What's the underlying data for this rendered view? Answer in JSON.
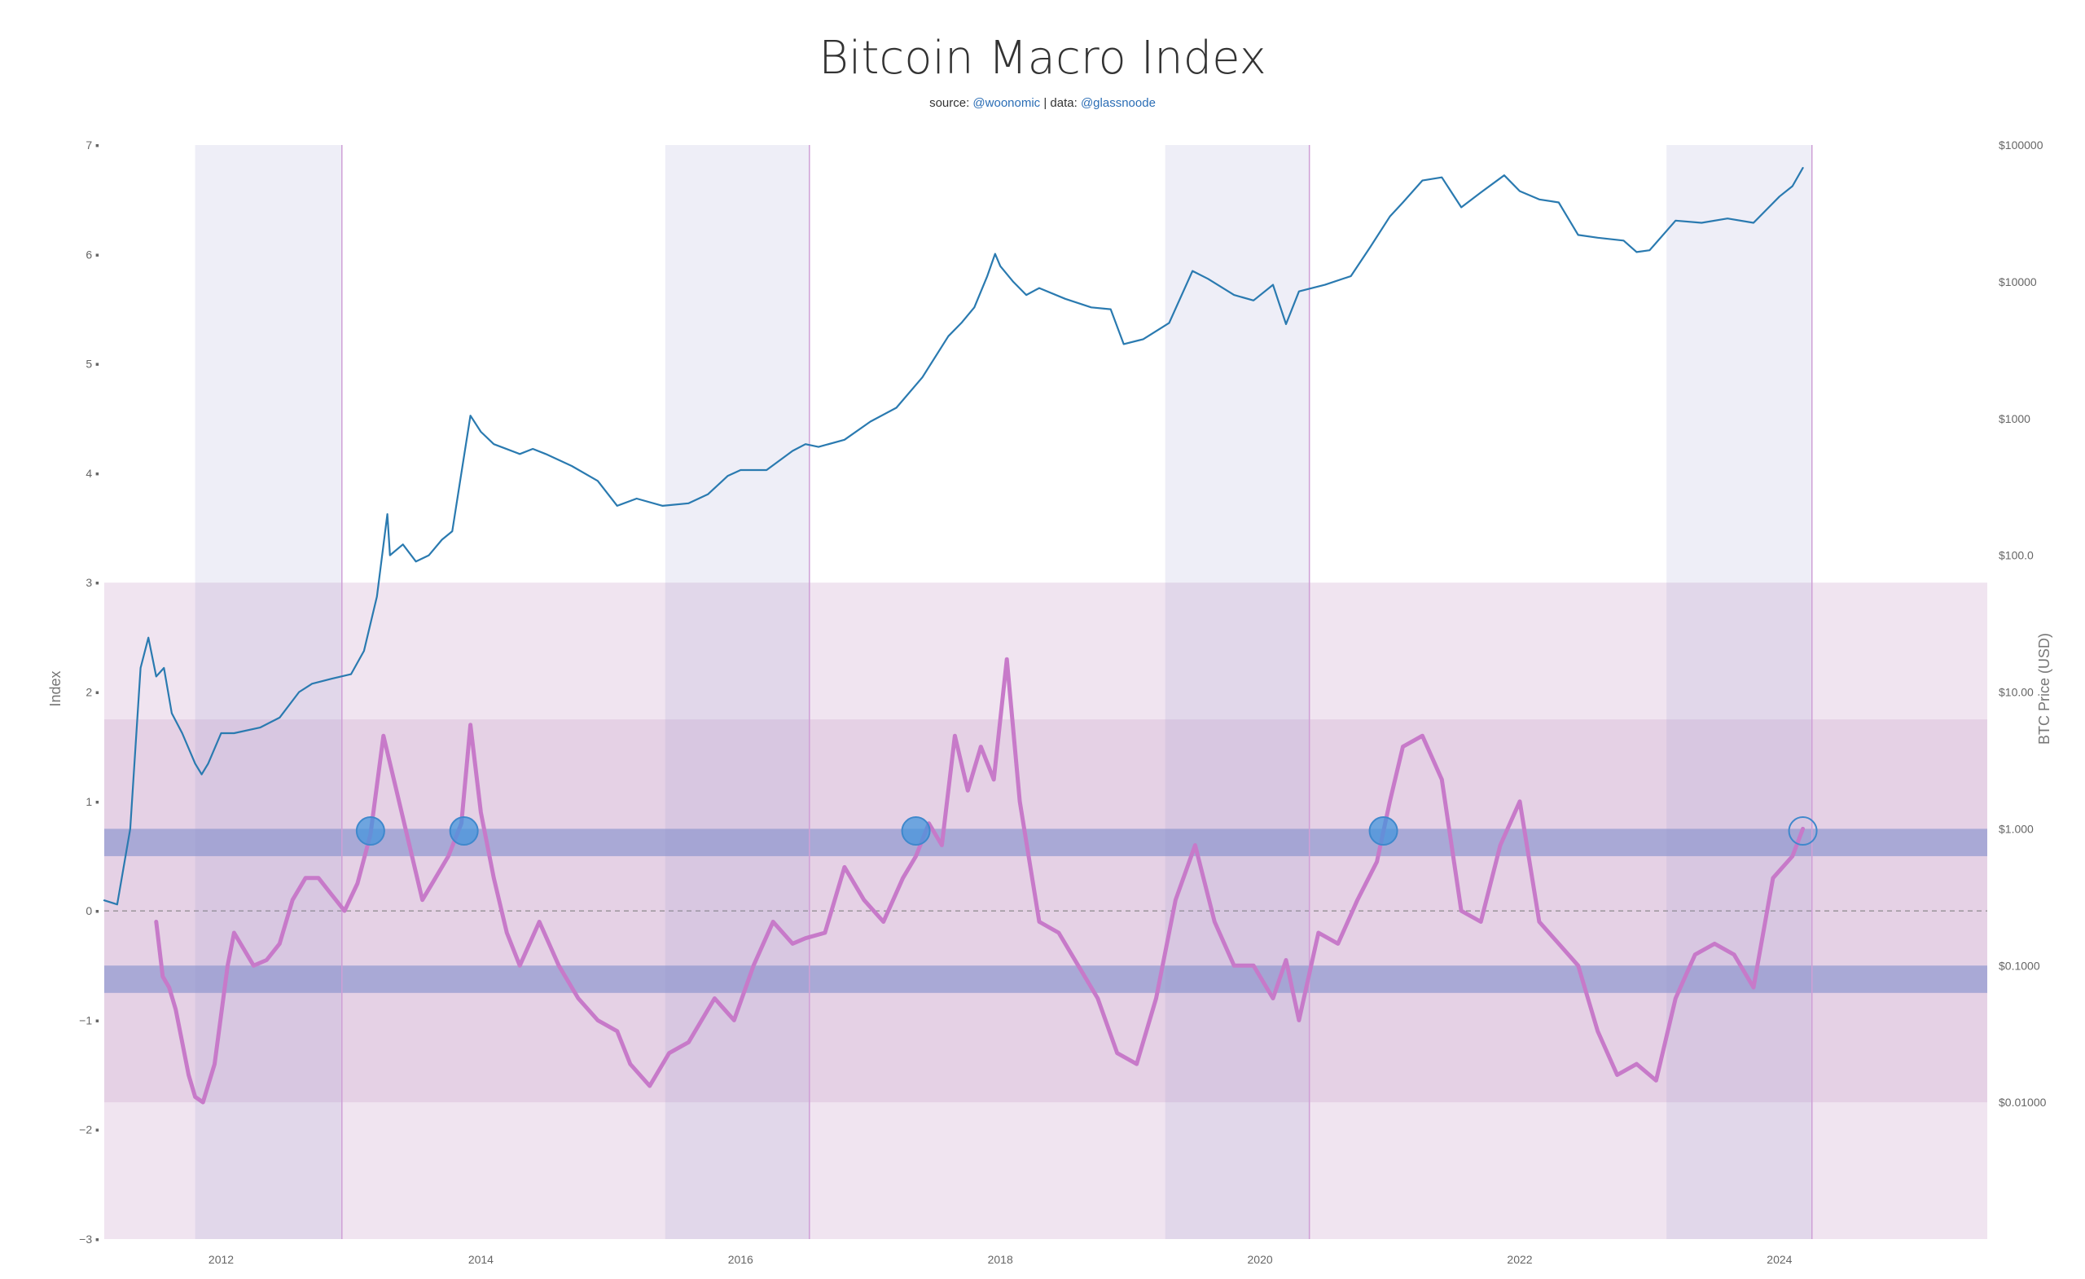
{
  "chart_data": {
    "type": "line",
    "title": "Bitcoin Macro Index",
    "subtitle": {
      "prefix": "source: ",
      "source": "@woonomic",
      "separator": " | data: ",
      "data": "@glassnoode"
    },
    "x_axis": {
      "range": [
        2011.1,
        2025.6
      ],
      "ticks": [
        {
          "value": 2012,
          "label": "2012"
        },
        {
          "value": 2014,
          "label": "2014"
        },
        {
          "value": 2016,
          "label": "2016"
        },
        {
          "value": 2018,
          "label": "2018"
        },
        {
          "value": 2020,
          "label": "2020"
        },
        {
          "value": 2022,
          "label": "2022"
        },
        {
          "value": 2024,
          "label": "2024"
        }
      ]
    },
    "y_left": {
      "label": "Index",
      "range": [
        -3,
        7
      ],
      "ticks": [
        {
          "value": 7,
          "label": "7"
        },
        {
          "value": 6,
          "label": "6"
        },
        {
          "value": 5,
          "label": "5"
        },
        {
          "value": 4,
          "label": "4"
        },
        {
          "value": 3,
          "label": "3"
        },
        {
          "value": 2,
          "label": "2"
        },
        {
          "value": 1,
          "label": "1"
        },
        {
          "value": 0,
          "label": "0"
        },
        {
          "value": -1,
          "label": "−1"
        },
        {
          "value": -2,
          "label": "−2"
        },
        {
          "value": -3,
          "label": "−3"
        }
      ]
    },
    "y_right": {
      "label": "BTC Price (USD)",
      "scale": "log",
      "range": [
        0.001,
        100000
      ],
      "ticks": [
        {
          "value": 100000,
          "label": "$100000"
        },
        {
          "value": 10000,
          "label": "$10000"
        },
        {
          "value": 1000,
          "label": "$1000"
        },
        {
          "value": 100,
          "label": "$100.0"
        },
        {
          "value": 10,
          "label": "$10.00"
        },
        {
          "value": 1,
          "label": "$1.000"
        },
        {
          "value": 0.1,
          "label": "$0.1000"
        },
        {
          "value": 0.01,
          "label": "$0.01000"
        }
      ]
    },
    "bands": [
      {
        "from": -3,
        "to": 3,
        "color": "#f0e4f0"
      },
      {
        "from": -1.75,
        "to": 1.75,
        "color": "#e5d1e5"
      },
      {
        "from": 0.5,
        "to": 0.75,
        "color": "#a9a9d6"
      },
      {
        "from": -0.75,
        "to": -0.5,
        "color": "#a9a9d6"
      }
    ],
    "shaded_periods": [
      {
        "from": 2011.8,
        "to": 2012.93
      },
      {
        "from": 2015.42,
        "to": 2016.53
      },
      {
        "from": 2019.27,
        "to": 2020.38
      },
      {
        "from": 2023.13,
        "to": 2024.25
      }
    ],
    "zero_line": true,
    "markers": [
      {
        "x": 2013.15,
        "y": 0.73,
        "filled": true
      },
      {
        "x": 2013.87,
        "y": 0.73,
        "filled": true
      },
      {
        "x": 2017.35,
        "y": 0.73,
        "filled": true
      },
      {
        "x": 2020.95,
        "y": 0.73,
        "filled": true
      },
      {
        "x": 2024.18,
        "y": 0.73,
        "filled": false
      }
    ],
    "series": [
      {
        "series_label": "BTC price",
        "axis": "right",
        "color": "#2a7ab0",
        "x": [
          2011.1,
          2011.2,
          2011.3,
          2011.38,
          2011.44,
          2011.5,
          2011.56,
          2011.62,
          2011.7,
          2011.8,
          2011.85,
          2011.9,
          2012.0,
          2012.1,
          2012.3,
          2012.45,
          2012.6,
          2012.7,
          2012.85,
          2013.0,
          2013.1,
          2013.2,
          2013.28,
          2013.3,
          2013.4,
          2013.5,
          2013.6,
          2013.7,
          2013.78,
          2013.85,
          2013.92,
          2014.0,
          2014.1,
          2014.3,
          2014.4,
          2014.5,
          2014.7,
          2014.9,
          2015.05,
          2015.2,
          2015.4,
          2015.6,
          2015.75,
          2015.9,
          2016.0,
          2016.2,
          2016.4,
          2016.5,
          2016.6,
          2016.8,
          2017.0,
          2017.2,
          2017.4,
          2017.6,
          2017.7,
          2017.8,
          2017.9,
          2017.96,
          2018.0,
          2018.1,
          2018.2,
          2018.3,
          2018.5,
          2018.7,
          2018.85,
          2018.95,
          2019.1,
          2019.3,
          2019.48,
          2019.6,
          2019.8,
          2019.95,
          2020.1,
          2020.2,
          2020.3,
          2020.5,
          2020.7,
          2020.85,
          2021.0,
          2021.1,
          2021.25,
          2021.4,
          2021.55,
          2021.7,
          2021.88,
          2022.0,
          2022.15,
          2022.3,
          2022.45,
          2022.6,
          2022.8,
          2022.9,
          2023.0,
          2023.2,
          2023.4,
          2023.6,
          2023.8,
          2024.0,
          2024.1,
          2024.18
        ],
        "y": [
          0.3,
          0.28,
          1.0,
          15.0,
          25.0,
          13.0,
          15.0,
          7.0,
          5.0,
          3.0,
          2.5,
          3.0,
          5.0,
          5.0,
          5.5,
          6.5,
          10.0,
          11.5,
          12.5,
          13.5,
          20.0,
          50.0,
          200.0,
          100.0,
          120.0,
          90.0,
          100.0,
          130.0,
          150.0,
          400.0,
          1050.0,
          800.0,
          650.0,
          550.0,
          600.0,
          550.0,
          450.0,
          350.0,
          230.0,
          260.0,
          230.0,
          240.0,
          280.0,
          380.0,
          420.0,
          420.0,
          580.0,
          650.0,
          620.0,
          700.0,
          950.0,
          1200.0,
          2000.0,
          4000.0,
          5000.0,
          6500.0,
          11000.0,
          16000.0,
          13000.0,
          10000.0,
          8000.0,
          9000.0,
          7500.0,
          6500.0,
          6300.0,
          3500.0,
          3800.0,
          5000.0,
          12000.0,
          10500.0,
          8000.0,
          7300.0,
          9500.0,
          4900.0,
          8500.0,
          9500.0,
          11000.0,
          18000.0,
          30000.0,
          38000.0,
          55000.0,
          58000.0,
          35000.0,
          45000.0,
          60000.0,
          46000.0,
          40000.0,
          38000.0,
          22000.0,
          21000.0,
          20000.0,
          16500.0,
          17000.0,
          28000.0,
          27000.0,
          29000.0,
          27000.0,
          42000.0,
          50000.0,
          68000.0
        ]
      },
      {
        "series_label": "Index",
        "axis": "left",
        "color": "#c77ac9",
        "x": [
          2011.5,
          2011.55,
          2011.6,
          2011.65,
          2011.7,
          2011.75,
          2011.8,
          2011.86,
          2011.95,
          2012.05,
          2012.1,
          2012.15,
          2012.25,
          2012.35,
          2012.45,
          2012.55,
          2012.65,
          2012.75,
          2012.85,
          2012.95,
          2013.05,
          2013.15,
          2013.25,
          2013.35,
          2013.45,
          2013.55,
          2013.65,
          2013.75,
          2013.85,
          2013.92,
          2014.0,
          2014.1,
          2014.2,
          2014.3,
          2014.45,
          2014.6,
          2014.75,
          2014.9,
          2015.05,
          2015.15,
          2015.3,
          2015.45,
          2015.6,
          2015.8,
          2015.95,
          2016.1,
          2016.25,
          2016.4,
          2016.5,
          2016.65,
          2016.8,
          2016.95,
          2017.1,
          2017.25,
          2017.35,
          2017.45,
          2017.55,
          2017.65,
          2017.75,
          2017.85,
          2017.95,
          2018.05,
          2018.15,
          2018.3,
          2018.45,
          2018.6,
          2018.75,
          2018.9,
          2019.05,
          2019.2,
          2019.35,
          2019.5,
          2019.65,
          2019.8,
          2019.95,
          2020.1,
          2020.2,
          2020.3,
          2020.45,
          2020.6,
          2020.75,
          2020.9,
          2021.0,
          2021.1,
          2021.25,
          2021.4,
          2021.55,
          2021.7,
          2021.85,
          2022.0,
          2022.15,
          2022.3,
          2022.45,
          2022.6,
          2022.75,
          2022.9,
          2023.05,
          2023.2,
          2023.35,
          2023.5,
          2023.65,
          2023.8,
          2023.95,
          2024.1,
          2024.18
        ],
        "y": [
          -0.1,
          -0.6,
          -0.7,
          -0.9,
          -1.2,
          -1.5,
          -1.7,
          -1.75,
          -1.4,
          -0.5,
          -0.2,
          -0.3,
          -0.5,
          -0.45,
          -0.3,
          0.1,
          0.3,
          0.3,
          0.15,
          0.0,
          0.25,
          0.7,
          1.6,
          1.1,
          0.6,
          0.1,
          0.3,
          0.5,
          0.8,
          1.7,
          0.9,
          0.3,
          -0.2,
          -0.5,
          -0.1,
          -0.5,
          -0.8,
          -1.0,
          -1.1,
          -1.4,
          -1.6,
          -1.3,
          -1.2,
          -0.8,
          -1.0,
          -0.5,
          -0.1,
          -0.3,
          -0.25,
          -0.2,
          0.4,
          0.1,
          -0.1,
          0.3,
          0.5,
          0.8,
          0.6,
          1.6,
          1.1,
          1.5,
          1.2,
          2.3,
          1.0,
          -0.1,
          -0.2,
          -0.5,
          -0.8,
          -1.3,
          -1.4,
          -0.8,
          0.1,
          0.6,
          -0.1,
          -0.5,
          -0.5,
          -0.8,
          -0.45,
          -1.0,
          -0.2,
          -0.3,
          0.1,
          0.45,
          1.0,
          1.5,
          1.6,
          1.2,
          0.0,
          -0.1,
          0.6,
          1.0,
          -0.1,
          -0.3,
          -0.5,
          -1.1,
          -1.5,
          -1.4,
          -1.55,
          -0.8,
          -0.4,
          -0.3,
          -0.4,
          -0.7,
          0.3,
          0.5,
          0.75
        ]
      }
    ]
  }
}
